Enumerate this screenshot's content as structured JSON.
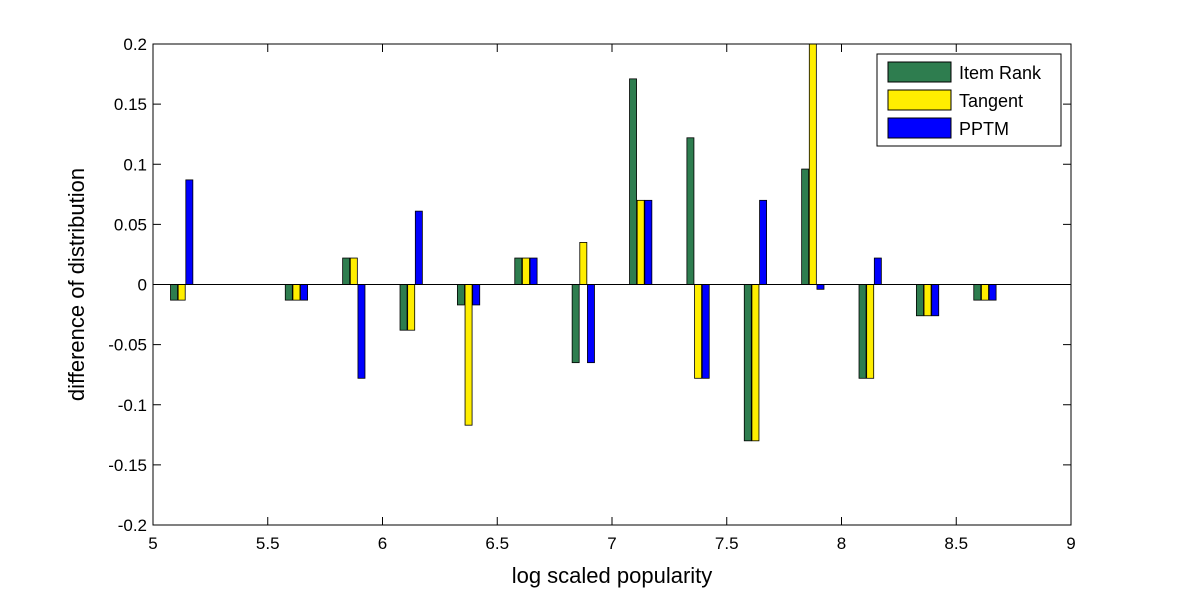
{
  "chart_data": {
    "type": "bar",
    "title": "",
    "xlabel": "log scaled popularity",
    "ylabel": "difference of distribution",
    "xlim": [
      5,
      9
    ],
    "ylim": [
      -0.2,
      0.2
    ],
    "xticks": [
      5,
      5.5,
      6,
      6.5,
      7,
      7.5,
      8,
      8.5,
      9
    ],
    "xtick_labels": [
      "5",
      "5.5",
      "6",
      "6.5",
      "7",
      "7.5",
      "8",
      "8.5",
      "9"
    ],
    "yticks": [
      0.2,
      0.15,
      0.1,
      0.05,
      0,
      -0.05,
      -0.1,
      -0.15,
      -0.2
    ],
    "ytick_labels": [
      "0.2",
      "0.15",
      "0.1",
      "0.05",
      "0",
      "-0.05",
      "-0.1",
      "-0.15",
      "-0.2"
    ],
    "grid": false,
    "legend_position": "top-right",
    "bar_group_width": 0.1,
    "x": [
      5.125,
      5.625,
      5.875,
      6.125,
      6.375,
      6.625,
      6.875,
      7.125,
      7.375,
      7.625,
      7.875,
      8.125,
      8.375,
      8.625
    ],
    "series": [
      {
        "name": "Item Rank",
        "color": "#2e7d4f",
        "values": [
          -0.013,
          -0.013,
          0.022,
          -0.038,
          -0.017,
          0.022,
          -0.065,
          0.171,
          0.122,
          -0.13,
          0.096,
          -0.078,
          -0.026,
          -0.013
        ]
      },
      {
        "name": "Tangent",
        "color": "#ffee00",
        "values": [
          -0.013,
          -0.013,
          0.022,
          -0.038,
          -0.117,
          0.022,
          0.035,
          0.07,
          -0.078,
          -0.13,
          0.2,
          -0.078,
          -0.026,
          -0.013
        ]
      },
      {
        "name": "PPTM",
        "color": "#0000ff",
        "values": [
          0.087,
          -0.013,
          -0.078,
          0.061,
          -0.017,
          0.022,
          -0.065,
          0.07,
          -0.078,
          0.07,
          -0.004,
          0.022,
          -0.026,
          -0.013
        ]
      }
    ]
  }
}
